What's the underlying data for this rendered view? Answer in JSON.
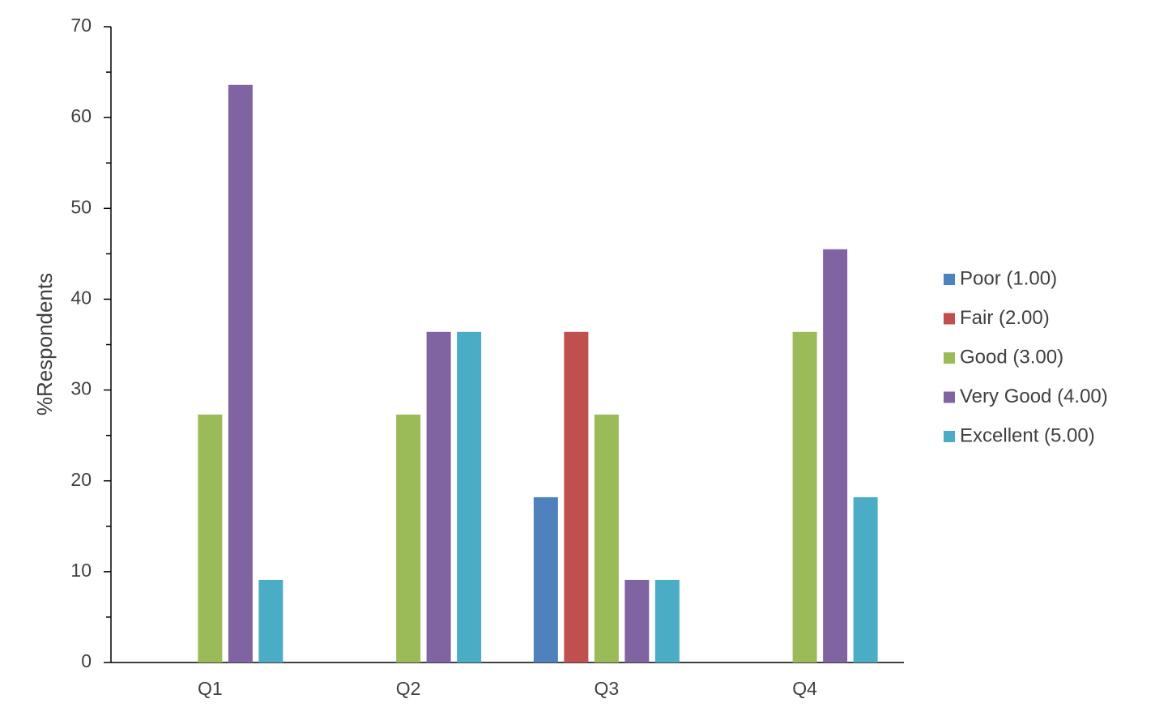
{
  "chart_data": {
    "type": "bar",
    "y_label": "%Respondents",
    "categories": [
      "Q1",
      "Q2",
      "Q3",
      "Q4"
    ],
    "series": [
      {
        "name": "Poor (1.00)",
        "color": "#4f81bd",
        "values": [
          0,
          0,
          18.2,
          0
        ]
      },
      {
        "name": "Fair (2.00)",
        "color": "#c0504d",
        "values": [
          0,
          0,
          36.4,
          0
        ]
      },
      {
        "name": "Good (3.00)",
        "color": "#9bbb59",
        "values": [
          27.3,
          27.3,
          27.3,
          36.4
        ]
      },
      {
        "name": "Very Good (4.00)",
        "color": "#8064a2",
        "values": [
          63.6,
          36.4,
          9.1,
          45.5
        ]
      },
      {
        "name": "Excellent (5.00)",
        "color": "#4bacc6",
        "values": [
          9.1,
          36.4,
          9.1,
          18.2
        ]
      }
    ],
    "ylim": [
      0,
      70
    ],
    "yticks": [
      0,
      10,
      20,
      30,
      40,
      50,
      60,
      70
    ],
    "yminorticks": [
      5,
      15,
      25,
      35,
      45,
      55,
      65
    ],
    "grid": false,
    "legend": "right"
  }
}
